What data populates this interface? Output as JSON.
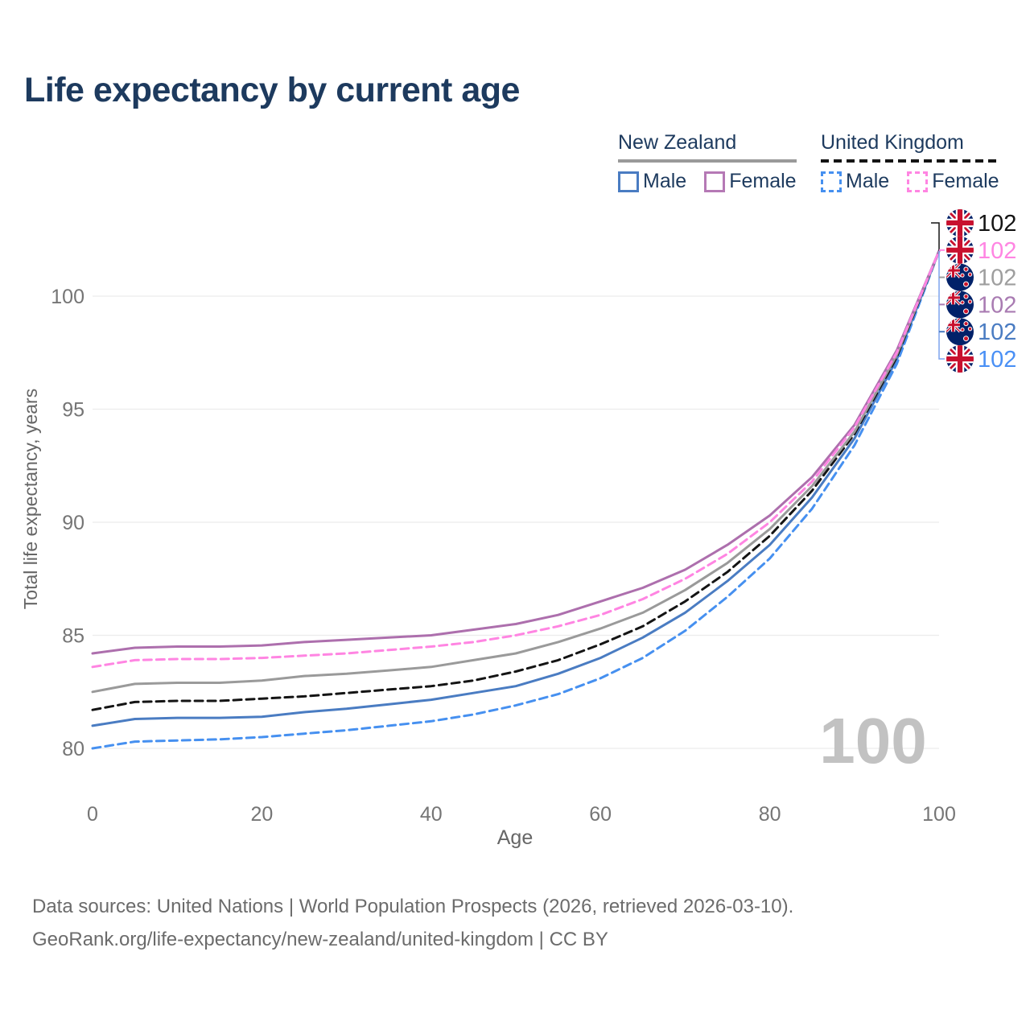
{
  "title": "Life expectancy by current age",
  "legend": {
    "groups": [
      {
        "name": "New Zealand",
        "line_style": "solid",
        "underline_color": "#9a9a9a",
        "items": [
          {
            "label": "Male",
            "color": "#4a7cc2"
          },
          {
            "label": "Female",
            "color": "#b579b5"
          }
        ]
      },
      {
        "name": "United Kingdom",
        "line_style": "dashed",
        "underline_color": "#141414",
        "items": [
          {
            "label": "Male",
            "color": "#4690f0"
          },
          {
            "label": "Female",
            "color": "#ff85e2"
          }
        ]
      }
    ]
  },
  "chart_data": {
    "type": "line",
    "title": "Life expectancy by current age",
    "xlabel": "Age",
    "ylabel": "Total life expectancy, years",
    "xlim": [
      0,
      100
    ],
    "ylim": [
      79,
      103
    ],
    "xticks": [
      0,
      20,
      40,
      60,
      80,
      100
    ],
    "yticks": [
      80,
      85,
      90,
      95,
      100
    ],
    "grid": "horizontal",
    "legend_position": "top-right",
    "watermark": "100",
    "x": [
      0,
      5,
      10,
      15,
      20,
      25,
      30,
      35,
      40,
      45,
      50,
      55,
      60,
      65,
      70,
      75,
      80,
      85,
      90,
      95,
      100
    ],
    "series": [
      {
        "name": "New Zealand Male",
        "country": "nz",
        "sex": "male",
        "color": "#4a7cc2",
        "dash": false,
        "values": [
          81.0,
          81.3,
          81.35,
          81.35,
          81.4,
          81.6,
          81.75,
          81.95,
          82.15,
          82.45,
          82.75,
          83.3,
          84.0,
          84.9,
          86.0,
          87.4,
          89.0,
          91.1,
          93.7,
          97.2,
          102.0
        ]
      },
      {
        "name": "United Kingdom Male",
        "country": "uk",
        "sex": "male",
        "color": "#4690f0",
        "dash": true,
        "values": [
          80.0,
          80.3,
          80.35,
          80.4,
          80.5,
          80.65,
          80.8,
          81.0,
          81.2,
          81.5,
          81.9,
          82.4,
          83.1,
          84.0,
          85.2,
          86.7,
          88.4,
          90.6,
          93.4,
          97.0,
          102.0
        ]
      },
      {
        "name": "United Kingdom Total",
        "country": "uk",
        "sex": "total",
        "color": "#141414",
        "dash": true,
        "values": [
          81.7,
          82.05,
          82.1,
          82.1,
          82.2,
          82.3,
          82.45,
          82.6,
          82.75,
          83.0,
          83.4,
          83.9,
          84.6,
          85.4,
          86.5,
          87.8,
          89.4,
          91.4,
          93.9,
          97.3,
          102.0
        ]
      },
      {
        "name": "New Zealand Total",
        "country": "nz",
        "sex": "total",
        "color": "#9a9a9a",
        "dash": false,
        "values": [
          82.5,
          82.85,
          82.9,
          82.9,
          83.0,
          83.2,
          83.3,
          83.45,
          83.6,
          83.9,
          84.2,
          84.7,
          85.3,
          86.0,
          87.0,
          88.2,
          89.7,
          91.6,
          94.0,
          97.4,
          102.0
        ]
      },
      {
        "name": "New Zealand Female",
        "country": "nz",
        "sex": "female",
        "color": "#ad6fad",
        "dash": false,
        "values": [
          84.2,
          84.45,
          84.5,
          84.5,
          84.55,
          84.7,
          84.8,
          84.9,
          85.0,
          85.25,
          85.5,
          85.9,
          86.5,
          87.1,
          87.9,
          89.0,
          90.3,
          92.0,
          94.3,
          97.6,
          102.0
        ]
      },
      {
        "name": "United Kingdom Female",
        "country": "uk",
        "sex": "female",
        "color": "#ff85e2",
        "dash": true,
        "values": [
          83.6,
          83.9,
          83.95,
          83.95,
          84.0,
          84.1,
          84.2,
          84.35,
          84.5,
          84.7,
          85.0,
          85.4,
          85.9,
          86.6,
          87.5,
          88.6,
          90.0,
          91.8,
          94.2,
          97.5,
          102.0
        ]
      }
    ],
    "end_labels": [
      {
        "flag": "uk",
        "series": "United Kingdom Total",
        "color": "#141414",
        "text": "102"
      },
      {
        "flag": "uk",
        "series": "United Kingdom Female",
        "color": "#ff85e2",
        "text": "102"
      },
      {
        "flag": "nz",
        "series": "New Zealand Total",
        "color": "#9e9e9e",
        "text": "102"
      },
      {
        "flag": "nz",
        "series": "New Zealand Female",
        "color": "#a97bb2",
        "text": "102"
      },
      {
        "flag": "nz",
        "series": "New Zealand Male",
        "color": "#4a7cc2",
        "text": "102"
      },
      {
        "flag": "uk",
        "series": "United Kingdom Male",
        "color": "#4a90f5",
        "text": "102"
      }
    ]
  },
  "colors": {
    "title_navy": "#1d3a5e",
    "grid": "#ececec",
    "tick_text": "#757575",
    "axis_label": "#666666",
    "watermark": "#c2c2c2",
    "footer_text": "#6b6b6b"
  },
  "footer": {
    "line1": "Data sources: United Nations | World Population Prospects (2026, retrieved 2026-03-10).",
    "line2": "GeoRank.org/life-expectancy/new-zealand/united-kingdom | CC BY"
  }
}
